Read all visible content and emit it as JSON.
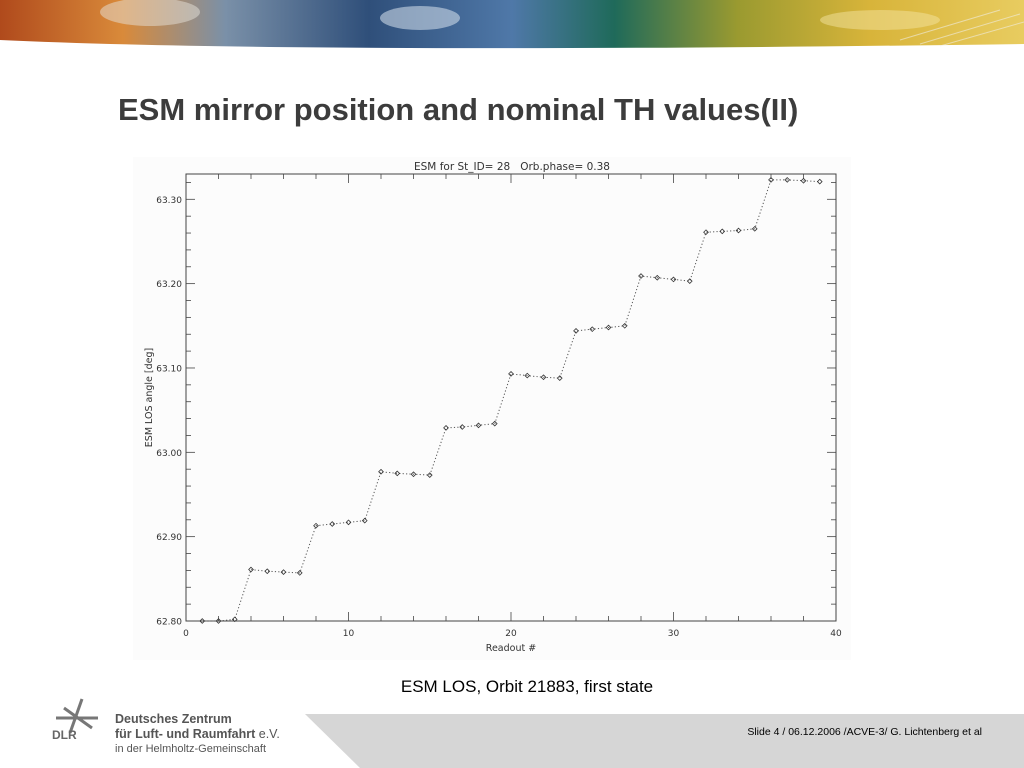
{
  "slide": {
    "title": "ESM mirror position and nominal TH values(II)",
    "caption": "ESM LOS, Orbit 21883, first state",
    "footer": "Slide 4 / 06.12.2006 /ACVE-3/ G. Lichtenberg et al"
  },
  "logo": {
    "abbrev": "DLR",
    "line1": "Deutsches Zentrum",
    "line2": "für Luft- und Raumfahrt",
    "line2_suffix": " e.V.",
    "line3": "in der Helmholtz-Gemeinschaft"
  },
  "chart_data": {
    "type": "line",
    "title": "ESM for St_ID= 28   Orb.phase= 0.38",
    "xlabel": "Readout #",
    "ylabel": "ESM LOS angle [deg]",
    "xlim": [
      0,
      40
    ],
    "ylim": [
      62.8,
      63.33
    ],
    "x_ticks": [
      "0",
      "10",
      "20",
      "30",
      "40"
    ],
    "y_ticks": [
      "62.80",
      "62.90",
      "63.00",
      "63.10",
      "63.20",
      "63.30"
    ],
    "grid": false,
    "line_style": "dotted",
    "marker": "diamond",
    "series": [
      {
        "x": [
          1,
          2,
          3,
          4,
          5,
          6,
          7,
          8,
          9,
          10,
          11,
          12,
          13,
          14,
          15,
          16,
          17,
          18,
          19,
          20,
          21,
          22,
          23,
          24,
          25,
          26,
          27,
          28,
          29,
          30,
          31,
          32,
          33,
          34,
          35,
          36,
          37,
          38,
          39
        ],
        "y": [
          62.8,
          62.8,
          62.802,
          62.861,
          62.859,
          62.858,
          62.857,
          62.913,
          62.915,
          62.917,
          62.919,
          62.977,
          62.975,
          62.974,
          62.973,
          63.029,
          63.03,
          63.032,
          63.034,
          63.093,
          63.091,
          63.089,
          63.088,
          63.144,
          63.146,
          63.148,
          63.15,
          63.209,
          63.207,
          63.205,
          63.203,
          63.261,
          63.262,
          63.263,
          63.265,
          63.323,
          63.323,
          63.322,
          63.321
        ]
      }
    ]
  }
}
